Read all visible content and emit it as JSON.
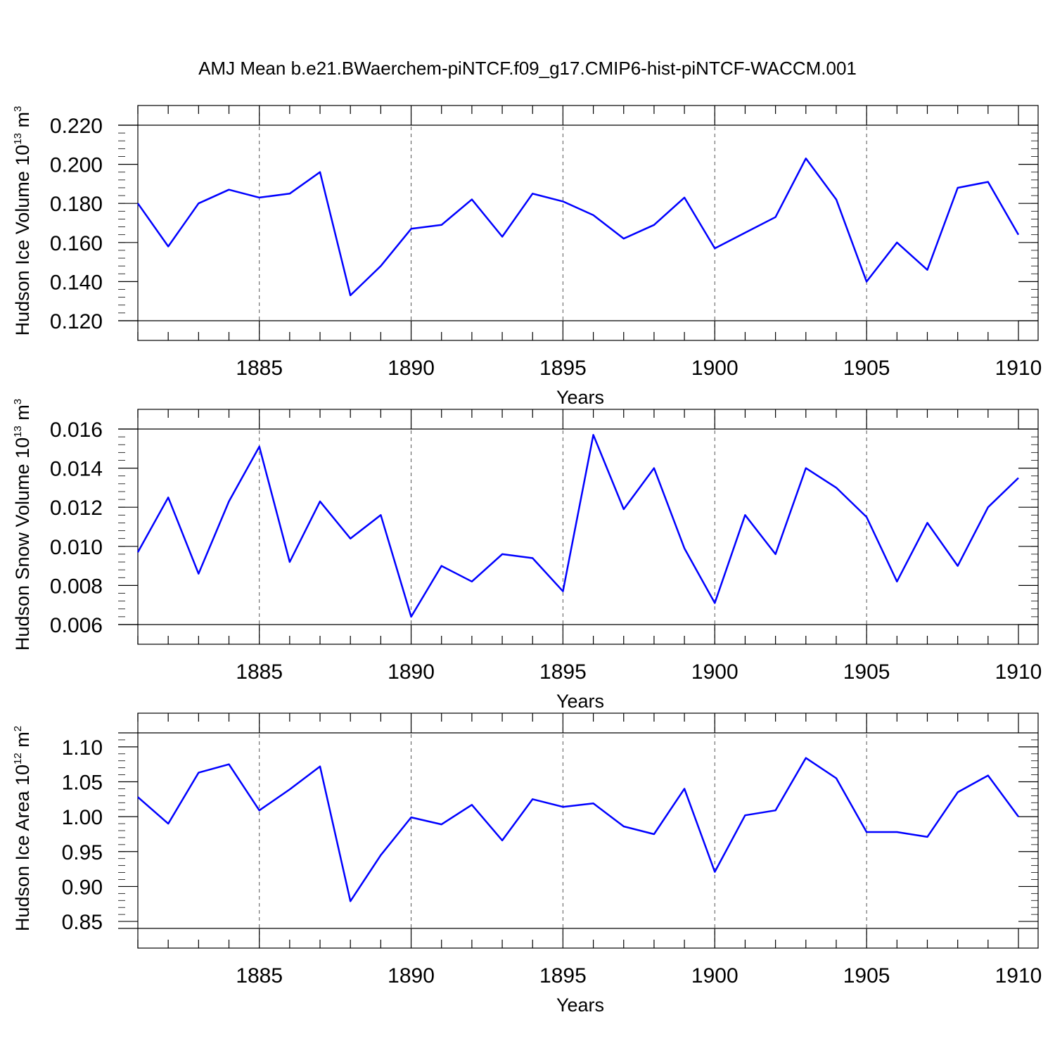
{
  "title": "AMJ Mean b.e21.BWaerchem-piNTCF.f09_g17.CMIP6-hist-piNTCF-WACCM.001",
  "line_color": "#0000ff",
  "chart_data": [
    {
      "type": "line",
      "xlabel": "Years",
      "ylabel": {
        "main": "Hudson Ice Volume 10",
        "sup": "13",
        "mid": " m",
        "sup2": "3"
      },
      "xlim": [
        1881,
        1910
      ],
      "ylim": [
        0.12,
        0.22
      ],
      "yticks": [
        "0.220",
        "0.200",
        "0.180",
        "0.160",
        "0.140",
        "0.120"
      ],
      "ytick_values": [
        0.22,
        0.2,
        0.18,
        0.16,
        0.14,
        0.12
      ],
      "yminor_step": 0.004,
      "xticks": [
        "1885",
        "1890",
        "1895",
        "1900",
        "1905",
        "1910"
      ],
      "xtick_values": [
        1885,
        1890,
        1895,
        1900,
        1905,
        1910
      ],
      "x": [
        1881,
        1882,
        1883,
        1884,
        1885,
        1886,
        1887,
        1888,
        1889,
        1890,
        1891,
        1892,
        1893,
        1894,
        1895,
        1896,
        1897,
        1898,
        1899,
        1900,
        1901,
        1902,
        1903,
        1904,
        1905,
        1906,
        1907,
        1908,
        1909,
        1910
      ],
      "series": [
        {
          "values": [
            0.18,
            0.158,
            0.18,
            0.187,
            0.183,
            0.185,
            0.196,
            0.133,
            0.148,
            0.167,
            0.169,
            0.182,
            0.163,
            0.185,
            0.181,
            0.174,
            0.162,
            0.169,
            0.183,
            0.157,
            0.165,
            0.173,
            0.203,
            0.182,
            0.14,
            0.16,
            0.146,
            0.188,
            0.191,
            0.164
          ]
        }
      ],
      "grid": "vertical dashed at major x ticks"
    },
    {
      "type": "line",
      "xlabel": "Years",
      "ylabel": {
        "main": "Hudson Snow Volume 10",
        "sup": "13",
        "mid": " m",
        "sup2": "3"
      },
      "xlim": [
        1881,
        1910
      ],
      "ylim": [
        0.006,
        0.016
      ],
      "yticks": [
        "0.016",
        "0.014",
        "0.012",
        "0.010",
        "0.008",
        "0.006"
      ],
      "ytick_values": [
        0.016,
        0.014,
        0.012,
        0.01,
        0.008,
        0.006
      ],
      "yminor_step": 0.0004,
      "xticks": [
        "1885",
        "1890",
        "1895",
        "1900",
        "1905",
        "1910"
      ],
      "xtick_values": [
        1885,
        1890,
        1895,
        1900,
        1905,
        1910
      ],
      "x": [
        1881,
        1882,
        1883,
        1884,
        1885,
        1886,
        1887,
        1888,
        1889,
        1890,
        1891,
        1892,
        1893,
        1894,
        1895,
        1896,
        1897,
        1898,
        1899,
        1900,
        1901,
        1902,
        1903,
        1904,
        1905,
        1906,
        1907,
        1908,
        1909,
        1910
      ],
      "series": [
        {
          "values": [
            0.0097,
            0.0125,
            0.0086,
            0.0123,
            0.0151,
            0.0092,
            0.0123,
            0.0104,
            0.0116,
            0.0064,
            0.009,
            0.0082,
            0.0096,
            0.0094,
            0.0077,
            0.0157,
            0.0119,
            0.014,
            0.0099,
            0.0071,
            0.0116,
            0.0096,
            0.014,
            0.013,
            0.0115,
            0.0082,
            0.0112,
            0.009,
            0.012,
            0.0135
          ]
        }
      ],
      "grid": "vertical dashed at major x ticks"
    },
    {
      "type": "line",
      "xlabel": "Years",
      "ylabel": {
        "main": "Hudson Ice Area 10",
        "sup": "12",
        "mid": " m",
        "sup2": "2"
      },
      "xlim": [
        1881,
        1910
      ],
      "ylim": [
        0.84,
        1.12
      ],
      "yticks": [
        "1.10",
        "1.05",
        "1.00",
        "0.95",
        "0.90",
        "0.85"
      ],
      "ytick_values": [
        1.1,
        1.05,
        1.0,
        0.95,
        0.9,
        0.85
      ],
      "yminor_step": 0.01,
      "xticks": [
        "1885",
        "1890",
        "1895",
        "1900",
        "1905",
        "1910"
      ],
      "xtick_values": [
        1885,
        1890,
        1895,
        1900,
        1905,
        1910
      ],
      "x": [
        1881,
        1882,
        1883,
        1884,
        1885,
        1886,
        1887,
        1888,
        1889,
        1890,
        1891,
        1892,
        1893,
        1894,
        1895,
        1896,
        1897,
        1898,
        1899,
        1900,
        1901,
        1902,
        1903,
        1904,
        1905,
        1906,
        1907,
        1908,
        1909,
        1910
      ],
      "series": [
        {
          "values": [
            1.028,
            0.99,
            1.063,
            1.075,
            1.009,
            1.039,
            1.072,
            0.879,
            0.945,
            0.999,
            0.989,
            1.017,
            0.966,
            1.025,
            1.014,
            1.019,
            0.986,
            0.975,
            1.04,
            0.921,
            1.002,
            1.009,
            1.084,
            1.055,
            0.978,
            0.978,
            0.971,
            1.035,
            1.059,
            1.0
          ]
        }
      ],
      "grid": "vertical dashed at major x ticks"
    }
  ]
}
